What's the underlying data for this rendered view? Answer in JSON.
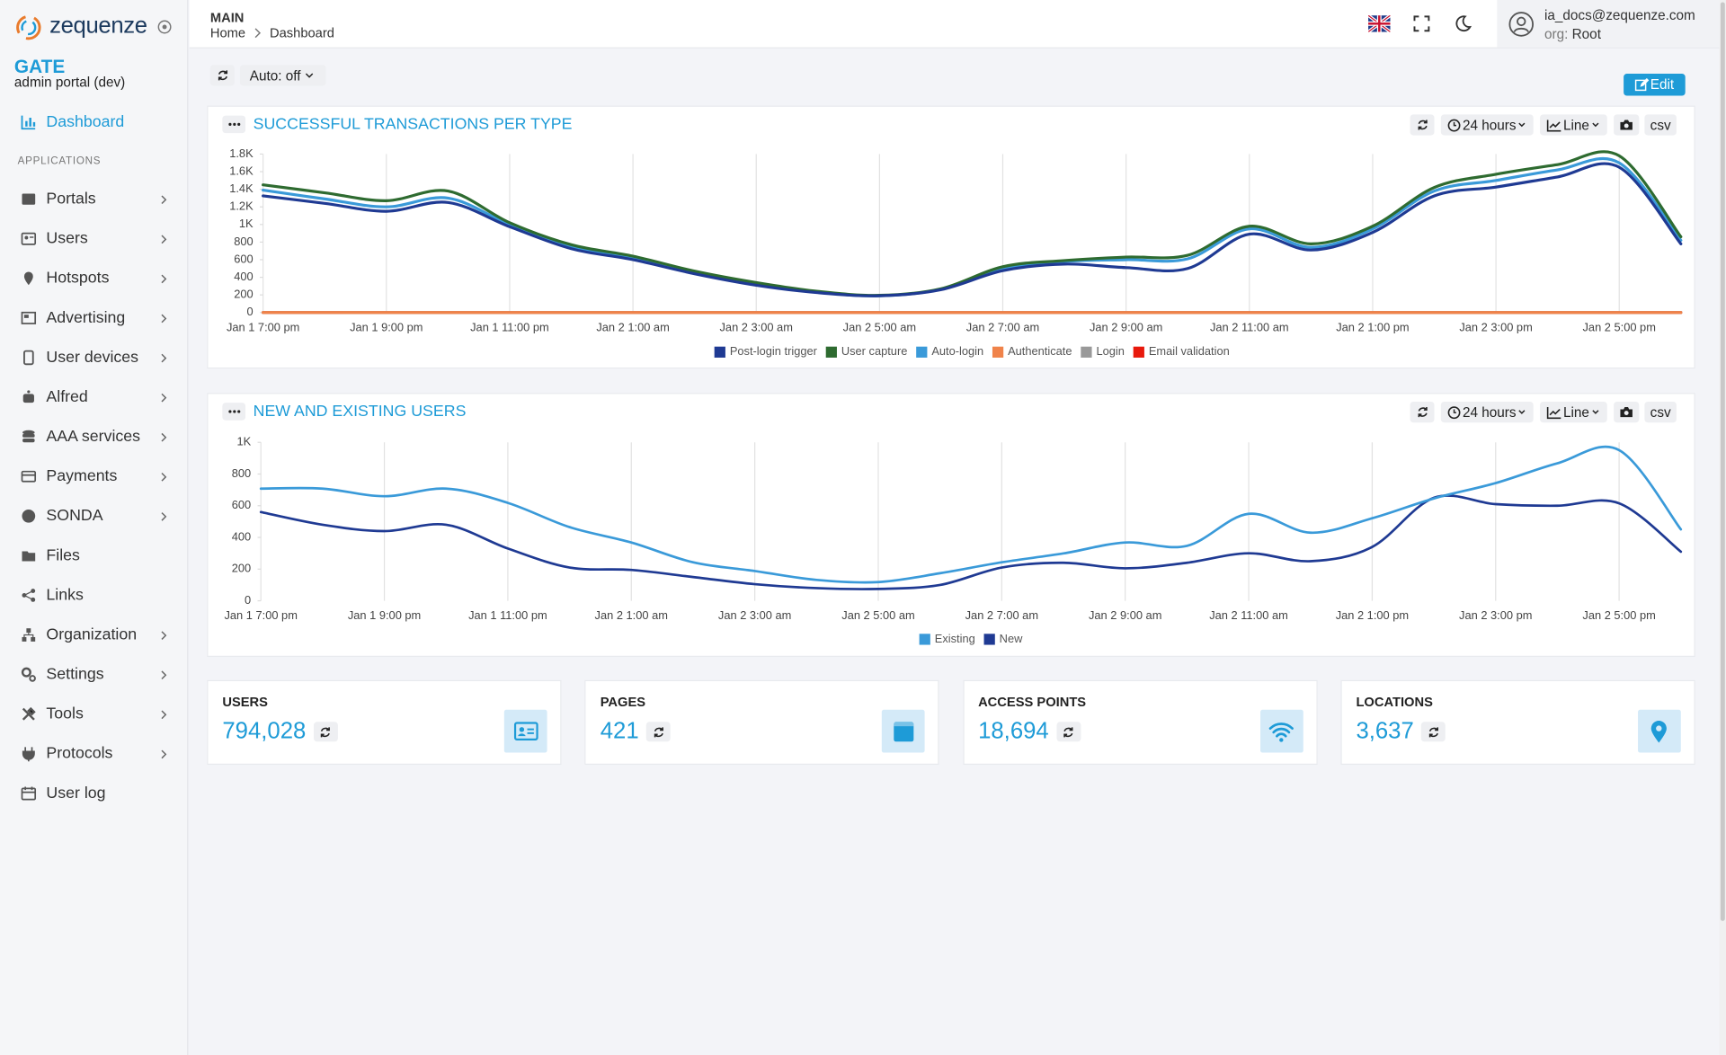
{
  "sidebar": {
    "brand": "zequenze",
    "app_title": "GATE",
    "app_subtitle": "admin portal (dev)",
    "active": "Dashboard",
    "section": "APPLICATIONS",
    "items": [
      {
        "label": "Portals",
        "submenu": true
      },
      {
        "label": "Users",
        "submenu": true
      },
      {
        "label": "Hotspots",
        "submenu": true
      },
      {
        "label": "Advertising",
        "submenu": true
      },
      {
        "label": "User devices",
        "submenu": true
      },
      {
        "label": "Alfred",
        "submenu": true
      },
      {
        "label": "AAA services",
        "submenu": true
      },
      {
        "label": "Payments",
        "submenu": true
      },
      {
        "label": "SONDA",
        "submenu": true
      },
      {
        "label": "Files",
        "submenu": false
      },
      {
        "label": "Links",
        "submenu": false
      },
      {
        "label": "Organization",
        "submenu": true
      },
      {
        "label": "Settings",
        "submenu": true
      },
      {
        "label": "Tools",
        "submenu": true
      },
      {
        "label": "Protocols",
        "submenu": true
      },
      {
        "label": "User log",
        "submenu": false
      }
    ]
  },
  "header": {
    "section": "MAIN",
    "breadcrumb": [
      "Home",
      "Dashboard"
    ],
    "user": "ia_docs@zequenze.com",
    "org_label": "org:",
    "org": "Root"
  },
  "toolbar": {
    "auto_refresh": "Auto: off",
    "edit": "Edit"
  },
  "chart_controls": {
    "range": "24 hours",
    "mode": "Line",
    "export": "csv"
  },
  "chart_data": [
    {
      "type": "line",
      "title": "SUCCESSFUL TRANSACTIONS PER TYPE",
      "categories": [
        "Jan 1 7:00 pm",
        null,
        "Jan 1 9:00 pm",
        null,
        "Jan 1 11:00 pm",
        null,
        "Jan 2 1:00 am",
        null,
        "Jan 2 3:00 am",
        null,
        "Jan 2 5:00 am",
        null,
        "Jan 2 7:00 am",
        null,
        "Jan 2 9:00 am",
        null,
        "Jan 2 11:00 am",
        null,
        "Jan 2 1:00 pm",
        null,
        "Jan 2 3:00 pm",
        null,
        "Jan 2 5:00 pm",
        null
      ],
      "ylim": [
        0,
        1800
      ],
      "yticks": [
        0,
        200,
        400,
        600,
        800,
        {
          "value": 1000,
          "label": "1K"
        },
        {
          "value": 1200,
          "label": "1.2K"
        },
        {
          "value": 1400,
          "label": "1.4K"
        },
        {
          "value": 1600,
          "label": "1.6K"
        },
        {
          "value": 1800,
          "label": "1.8K"
        }
      ],
      "grid": "x",
      "legend": "bottom",
      "series": [
        {
          "name": "Post-login trigger",
          "color": "#1f3a93",
          "values": [
            1325,
            1240,
            1150,
            1250,
            975,
            725,
            600,
            440,
            310,
            225,
            190,
            260,
            475,
            550,
            510,
            500,
            890,
            710,
            910,
            1325,
            1425,
            1540,
            1650,
            780
          ]
        },
        {
          "name": "User capture",
          "color": "#2e6b30",
          "values": [
            1450,
            1360,
            1270,
            1380,
            1020,
            770,
            640,
            470,
            340,
            240,
            195,
            270,
            520,
            590,
            630,
            650,
            980,
            780,
            980,
            1420,
            1570,
            1680,
            1780,
            860
          ]
        },
        {
          "name": "Auto-login",
          "color": "#3a9ad9",
          "values": [
            1390,
            1290,
            1200,
            1300,
            1000,
            750,
            620,
            460,
            320,
            230,
            190,
            265,
            500,
            580,
            600,
            610,
            950,
            740,
            950,
            1380,
            1500,
            1620,
            1700,
            820
          ]
        },
        {
          "name": "Authenticate",
          "color": "#f0834a",
          "values": [
            0,
            0,
            0,
            0,
            0,
            0,
            0,
            0,
            0,
            0,
            0,
            0,
            0,
            0,
            0,
            0,
            0,
            0,
            0,
            0,
            0,
            0,
            0,
            0
          ]
        },
        {
          "name": "Login",
          "color": "#999999",
          "values": [
            0,
            0,
            0,
            0,
            0,
            0,
            0,
            0,
            0,
            0,
            0,
            0,
            0,
            0,
            0,
            0,
            0,
            0,
            0,
            0,
            0,
            0,
            0,
            0
          ]
        },
        {
          "name": "Email validation",
          "color": "#e8190c",
          "values": [
            0,
            0,
            0,
            0,
            0,
            0,
            0,
            0,
            0,
            0,
            0,
            0,
            0,
            0,
            0,
            0,
            0,
            0,
            0,
            0,
            0,
            0,
            0,
            0
          ]
        }
      ]
    },
    {
      "type": "line",
      "title": "NEW AND EXISTING USERS",
      "categories": [
        "Jan 1 7:00 pm",
        null,
        "Jan 1 9:00 pm",
        null,
        "Jan 1 11:00 pm",
        null,
        "Jan 2 1:00 am",
        null,
        "Jan 2 3:00 am",
        null,
        "Jan 2 5:00 am",
        null,
        "Jan 2 7:00 am",
        null,
        "Jan 2 9:00 am",
        null,
        "Jan 2 11:00 am",
        null,
        "Jan 2 1:00 pm",
        null,
        "Jan 2 3:00 pm",
        null,
        "Jan 2 5:00 pm",
        null
      ],
      "ylim": [
        0,
        1000
      ],
      "yticks": [
        0,
        200,
        400,
        600,
        800,
        {
          "value": 1000,
          "label": "1K"
        }
      ],
      "grid": "x",
      "legend": "bottom",
      "series": [
        {
          "name": "Existing",
          "color": "#3a9ad9",
          "values": [
            708,
            708,
            660,
            708,
            618,
            465,
            368,
            243,
            188,
            132,
            118,
            174,
            243,
            299,
            368,
            347,
            549,
            430,
            521,
            646,
            743,
            868,
            951,
            451
          ]
        },
        {
          "name": "New",
          "color": "#1f3a93",
          "values": [
            560,
            480,
            440,
            480,
            330,
            210,
            195,
            150,
            105,
            80,
            75,
            100,
            210,
            240,
            205,
            240,
            300,
            250,
            340,
            650,
            610,
            600,
            615,
            310
          ]
        }
      ]
    }
  ],
  "stats": [
    {
      "label": "USERS",
      "value": "794,028"
    },
    {
      "label": "PAGES",
      "value": "421"
    },
    {
      "label": "ACCESS POINTS",
      "value": "18,694"
    },
    {
      "label": "LOCATIONS",
      "value": "3,637"
    }
  ]
}
